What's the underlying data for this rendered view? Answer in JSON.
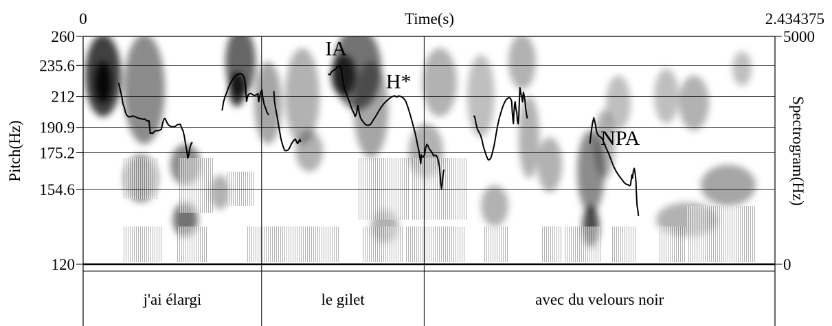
{
  "chart_data": {
    "type": "line",
    "x_axis": {
      "label": "Time(s)",
      "start_label": "0",
      "end_label": "2.434375",
      "range": [
        0,
        2.434375
      ]
    },
    "y_left": {
      "label": "Pitch(Hz)",
      "ticks": [
        "260",
        "235.6",
        "212",
        "190.9",
        "175.2",
        "154.6",
        "120"
      ],
      "tick_values": [
        260,
        235.6,
        212,
        190.9,
        175.2,
        154.6,
        120
      ],
      "range": [
        120,
        260
      ],
      "scale": "log"
    },
    "y_right": {
      "label": "Spectrogram(Hz)",
      "ticks": [
        "5000",
        "0"
      ],
      "range": [
        0,
        5000
      ]
    },
    "grid": true,
    "annotations": [
      {
        "label": "IA",
        "t": 0.89,
        "f": 244
      },
      {
        "label": "H*",
        "t": 1.11,
        "f": 218
      },
      {
        "label": "NPA",
        "t": 1.89,
        "f": 180
      }
    ],
    "tier": {
      "boundaries": [
        0.628,
        1.2
      ],
      "intervals": [
        {
          "text": "j'ai élargi",
          "start": 0,
          "end": 0.628
        },
        {
          "text": "le gilet",
          "start": 0.628,
          "end": 1.2
        },
        {
          "text": "avec du velours noir",
          "start": 1.2,
          "end": 2.434375
        }
      ]
    },
    "pitch_segments": [
      {
        "name": "seg1",
        "points": [
          [
            0.125,
            222.0
          ],
          [
            0.131,
            216.5
          ],
          [
            0.137,
            210.8
          ],
          [
            0.14,
            206.9
          ],
          [
            0.145,
            204.0
          ],
          [
            0.149,
            200.9
          ],
          [
            0.153,
            199.1
          ],
          [
            0.157,
            198.4
          ],
          [
            0.162,
            197.7
          ],
          [
            0.168,
            198.1
          ],
          [
            0.174,
            198.4
          ],
          [
            0.181,
            198.1
          ],
          [
            0.187,
            197.7
          ],
          [
            0.193,
            197.0
          ],
          [
            0.199,
            196.8
          ],
          [
            0.205,
            196.6
          ],
          [
            0.211,
            196.1
          ],
          [
            0.215,
            196.6
          ],
          [
            0.22,
            195.9
          ],
          [
            0.224,
            195.4
          ],
          [
            0.228,
            194.9
          ],
          [
            0.232,
            195.2
          ],
          [
            0.236,
            187.1
          ],
          [
            0.241,
            187.3
          ],
          [
            0.245,
            187.1
          ],
          [
            0.251,
            188.3
          ],
          [
            0.257,
            188.9
          ],
          [
            0.263,
            188.7
          ],
          [
            0.269,
            189.1
          ],
          [
            0.275,
            189.6
          ],
          [
            0.28,
            193.8
          ],
          [
            0.284,
            196.3
          ],
          [
            0.288,
            196.8
          ],
          [
            0.292,
            195.2
          ],
          [
            0.297,
            193.3
          ],
          [
            0.302,
            192.2
          ],
          [
            0.307,
            191.7
          ],
          [
            0.313,
            191.3
          ],
          [
            0.319,
            191.3
          ],
          [
            0.325,
            191.7
          ],
          [
            0.331,
            192.6
          ],
          [
            0.337,
            192.9
          ],
          [
            0.342,
            192.9
          ],
          [
            0.346,
            190.9
          ],
          [
            0.352,
            188.5
          ],
          [
            0.356,
            185.2
          ],
          [
            0.36,
            180.9
          ],
          [
            0.365,
            176.2
          ],
          [
            0.368,
            172.0
          ],
          [
            0.372,
            174.0
          ],
          [
            0.374,
            176.8
          ],
          [
            0.377,
            178.8
          ],
          [
            0.381,
            181.1
          ],
          [
            0.385,
            181.4
          ]
        ]
      },
      {
        "name": "seg2",
        "points": [
          [
            0.489,
            202.2
          ],
          [
            0.494,
            208.0
          ],
          [
            0.499,
            211.6
          ],
          [
            0.505,
            214.8
          ],
          [
            0.511,
            218.4
          ],
          [
            0.517,
            221.3
          ],
          [
            0.523,
            223.6
          ],
          [
            0.529,
            225.4
          ],
          [
            0.534,
            226.9
          ],
          [
            0.54,
            228.2
          ],
          [
            0.546,
            228.7
          ],
          [
            0.551,
            229.0
          ],
          [
            0.557,
            229.0
          ],
          [
            0.561,
            228.2
          ],
          [
            0.565,
            226.9
          ],
          [
            0.568,
            224.6
          ],
          [
            0.571,
            221.0
          ],
          [
            0.573,
            214.4
          ],
          [
            0.575,
            208.5
          ],
          [
            0.578,
            211.3
          ],
          [
            0.581,
            213.1
          ],
          [
            0.586,
            214.1
          ],
          [
            0.592,
            214.1
          ],
          [
            0.598,
            213.1
          ],
          [
            0.603,
            212.8
          ],
          [
            0.609,
            213.1
          ],
          [
            0.615,
            214.1
          ],
          [
            0.618,
            208.3
          ],
          [
            0.621,
            211.9
          ],
          [
            0.625,
            215.1
          ],
          [
            0.629,
            216.7
          ],
          [
            0.632,
            211.6
          ],
          [
            0.637,
            206.4
          ],
          [
            0.643,
            203.2
          ],
          [
            0.647,
            200.9
          ],
          [
            0.653,
            199.1
          ]
        ]
      },
      {
        "name": "seg3",
        "points": [
          [
            0.671,
            215.9
          ],
          [
            0.673,
            209.3
          ],
          [
            0.677,
            204.0
          ],
          [
            0.683,
            197.7
          ],
          [
            0.689,
            190.9
          ],
          [
            0.696,
            183.7
          ],
          [
            0.703,
            179.3
          ],
          [
            0.709,
            176.6
          ],
          [
            0.715,
            176.4
          ],
          [
            0.721,
            176.8
          ],
          [
            0.726,
            177.9
          ],
          [
            0.732,
            180.2
          ],
          [
            0.738,
            182.0
          ],
          [
            0.743,
            183.0
          ],
          [
            0.747,
            183.5
          ],
          [
            0.751,
            181.6
          ],
          [
            0.755,
            180.7
          ],
          [
            0.759,
            182.3
          ],
          [
            0.763,
            183.2
          ],
          [
            0.765,
            181.6
          ]
        ]
      },
      {
        "name": "seg4",
        "points": [
          [
            0.862,
            228.4
          ],
          [
            0.865,
            228.7
          ],
          [
            0.869,
            228.2
          ],
          [
            0.873,
            230.2
          ],
          [
            0.878,
            231.5
          ],
          [
            0.884,
            231.8
          ],
          [
            0.89,
            233.1
          ],
          [
            0.895,
            234.7
          ],
          [
            0.9,
            235.3
          ],
          [
            0.905,
            235.0
          ],
          [
            0.909,
            232.3
          ],
          [
            0.914,
            223.8
          ],
          [
            0.92,
            216.9
          ],
          [
            0.926,
            214.4
          ],
          [
            0.932,
            210.8
          ],
          [
            0.938,
            207.7
          ],
          [
            0.943,
            204.6
          ],
          [
            0.948,
            202.2
          ],
          [
            0.953,
            200.3
          ],
          [
            0.957,
            198.1
          ],
          [
            0.962,
            200.3
          ],
          [
            0.967,
            205.6
          ],
          [
            0.971,
            201.0
          ],
          [
            0.976,
            197.2
          ],
          [
            0.982,
            195.4
          ],
          [
            0.989,
            193.6
          ],
          [
            0.996,
            192.5
          ],
          [
            1.004,
            192.2
          ],
          [
            1.012,
            193.0
          ],
          [
            1.02,
            195.4
          ],
          [
            1.029,
            198.1
          ],
          [
            1.038,
            201.0
          ],
          [
            1.047,
            204.0
          ],
          [
            1.058,
            206.9
          ],
          [
            1.068,
            209.0
          ],
          [
            1.078,
            210.6
          ],
          [
            1.087,
            211.9
          ],
          [
            1.096,
            212.4
          ],
          [
            1.104,
            211.6
          ],
          [
            1.11,
            212.4
          ],
          [
            1.119,
            211.9
          ],
          [
            1.127,
            210.8
          ],
          [
            1.135,
            208.8
          ],
          [
            1.143,
            204.3
          ],
          [
            1.15,
            199.9
          ],
          [
            1.157,
            195.2
          ],
          [
            1.163,
            190.9
          ],
          [
            1.168,
            187.3
          ],
          [
            1.173,
            183.3
          ],
          [
            1.177,
            179.5
          ],
          [
            1.181,
            176.8
          ],
          [
            1.185,
            172.2
          ],
          [
            1.188,
            168.8
          ],
          [
            1.19,
            173.9
          ],
          [
            1.193,
            173.0
          ],
          [
            1.197,
            172.6
          ],
          [
            1.201,
            173.9
          ],
          [
            1.205,
            177.9
          ],
          [
            1.209,
            180.2
          ],
          [
            1.213,
            179.5
          ],
          [
            1.218,
            177.5
          ],
          [
            1.223,
            176.4
          ],
          [
            1.228,
            175.2
          ],
          [
            1.233,
            173.4
          ],
          [
            1.238,
            173.7
          ],
          [
            1.243,
            173.4
          ],
          [
            1.247,
            172.2
          ],
          [
            1.251,
            169.6
          ],
          [
            1.254,
            166.8
          ],
          [
            1.256,
            162.7
          ],
          [
            1.258,
            158.1
          ],
          [
            1.261,
            155.0
          ],
          [
            1.263,
            157.0
          ],
          [
            1.265,
            160.6
          ],
          [
            1.268,
            164.3
          ],
          [
            1.27,
            165.4
          ]
        ]
      },
      {
        "name": "seg5",
        "points": [
          [
            1.374,
            198.6
          ],
          [
            1.378,
            197.9
          ],
          [
            1.382,
            193.8
          ],
          [
            1.387,
            190.0
          ],
          [
            1.393,
            187.8
          ],
          [
            1.398,
            186.2
          ],
          [
            1.404,
            182.5
          ],
          [
            1.409,
            178.6
          ],
          [
            1.414,
            175.9
          ],
          [
            1.42,
            172.9
          ],
          [
            1.425,
            171.1
          ],
          [
            1.43,
            171.1
          ],
          [
            1.435,
            172.2
          ],
          [
            1.44,
            175.2
          ],
          [
            1.446,
            179.5
          ],
          [
            1.452,
            185.4
          ],
          [
            1.458,
            191.7
          ],
          [
            1.464,
            196.8
          ],
          [
            1.47,
            200.7
          ],
          [
            1.476,
            204.6
          ],
          [
            1.482,
            207.4
          ],
          [
            1.488,
            209.6
          ],
          [
            1.494,
            210.8
          ],
          [
            1.499,
            211.3
          ],
          [
            1.504,
            210.6
          ],
          [
            1.508,
            208.5
          ],
          [
            1.51,
            201.0
          ],
          [
            1.512,
            196.3
          ],
          [
            1.514,
            193.3
          ],
          [
            1.516,
            200.9
          ],
          [
            1.518,
            206.3
          ],
          [
            1.52,
            208.3
          ],
          [
            1.523,
            203.3
          ],
          [
            1.526,
            200.5
          ],
          [
            1.528,
            195.4
          ],
          [
            1.531,
            193.2
          ],
          [
            1.533,
            198.1
          ],
          [
            1.535,
            209.5
          ],
          [
            1.537,
            218.4
          ],
          [
            1.54,
            214.1
          ],
          [
            1.543,
            212.4
          ],
          [
            1.546,
            208.2
          ],
          [
            1.549,
            215.1
          ],
          [
            1.552,
            212.6
          ],
          [
            1.555,
            208.5
          ],
          [
            1.557,
            203.8
          ],
          [
            1.56,
            199.9
          ],
          [
            1.563,
            196.8
          ]
        ]
      },
      {
        "name": "seg6",
        "points": [
          [
            1.783,
            180.7
          ],
          [
            1.788,
            188.1
          ],
          [
            1.792,
            193.5
          ],
          [
            1.797,
            197.2
          ],
          [
            1.802,
            193.4
          ],
          [
            1.807,
            187.8
          ],
          [
            1.813,
            185.6
          ],
          [
            1.819,
            185.0
          ],
          [
            1.826,
            183.9
          ],
          [
            1.833,
            181.1
          ],
          [
            1.84,
            178.1
          ],
          [
            1.848,
            175.2
          ],
          [
            1.857,
            171.3
          ],
          [
            1.866,
            167.5
          ],
          [
            1.876,
            164.3
          ],
          [
            1.886,
            161.9
          ],
          [
            1.896,
            159.9
          ],
          [
            1.904,
            158.3
          ],
          [
            1.911,
            157.4
          ],
          [
            1.917,
            157.2
          ],
          [
            1.922,
            156.6
          ],
          [
            1.926,
            157.0
          ],
          [
            1.929,
            160.1
          ],
          [
            1.931,
            162.5
          ],
          [
            1.933,
            160.6
          ],
          [
            1.936,
            164.5
          ],
          [
            1.939,
            166.1
          ],
          [
            1.941,
            164.7
          ],
          [
            1.943,
            162.7
          ],
          [
            1.945,
            159.0
          ],
          [
            1.947,
            151.8
          ],
          [
            1.949,
            146.6
          ],
          [
            1.952,
            143.9
          ],
          [
            1.954,
            141.3
          ]
        ]
      }
    ]
  }
}
